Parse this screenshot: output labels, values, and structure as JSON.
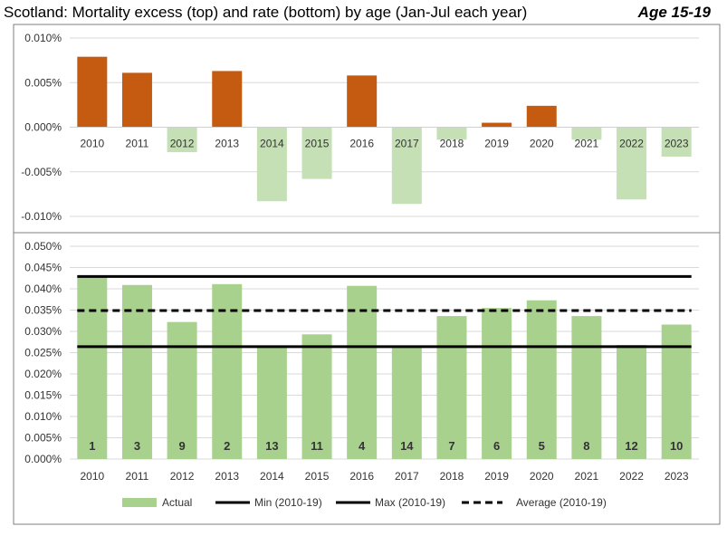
{
  "header": {
    "title": "Scotland: Mortality excess (top) and rate (bottom) by age (Jan-Jul each year)",
    "age_group": "Age 15-19"
  },
  "colors": {
    "positive_excess": "#c55a11",
    "negative_excess": "#c5e0b4",
    "actual_bar": "#a9d18e",
    "reference_line": "#000000",
    "grid": "#d9d9d9"
  },
  "chart_data": [
    {
      "type": "bar",
      "categories": [
        "2010",
        "2011",
        "2012",
        "2013",
        "2014",
        "2015",
        "2016",
        "2017",
        "2018",
        "2019",
        "2020",
        "2021",
        "2022",
        "2023"
      ],
      "values": [
        0.0079,
        0.0061,
        -0.0028,
        0.0063,
        -0.0083,
        -0.0058,
        0.0058,
        -0.0086,
        -0.0014,
        0.0005,
        0.0024,
        -0.0014,
        -0.0081,
        -0.0033
      ],
      "ylim": [
        -0.01,
        0.01
      ],
      "yticks": [
        "0.010%",
        "0.005%",
        "0.000%",
        "-0.005%",
        "-0.010%"
      ],
      "ytick_values": [
        0.01,
        0.005,
        0,
        -0.005,
        -0.01
      ],
      "grid": true
    },
    {
      "type": "bar",
      "categories": [
        "2010",
        "2011",
        "2012",
        "2013",
        "2014",
        "2015",
        "2016",
        "2017",
        "2018",
        "2019",
        "2020",
        "2021",
        "2022",
        "2023"
      ],
      "series": [
        {
          "name": "Actual",
          "values": [
            0.0429,
            0.0409,
            0.0322,
            0.0411,
            0.0265,
            0.0293,
            0.0407,
            0.0264,
            0.0336,
            0.0355,
            0.0373,
            0.0336,
            0.0268,
            0.0316
          ]
        }
      ],
      "ranks": [
        "1",
        "3",
        "9",
        "2",
        "13",
        "11",
        "4",
        "14",
        "7",
        "6",
        "5",
        "8",
        "12",
        "10"
      ],
      "lines": [
        {
          "name": "Min (2010-19)",
          "value": 0.0264,
          "style": "solid"
        },
        {
          "name": "Max (2010-19)",
          "value": 0.0429,
          "style": "solid"
        },
        {
          "name": "Average (2010-19)",
          "value": 0.0349,
          "style": "dashed"
        }
      ],
      "ylim": [
        0,
        0.05
      ],
      "yticks": [
        "0.050%",
        "0.045%",
        "0.040%",
        "0.035%",
        "0.030%",
        "0.025%",
        "0.020%",
        "0.015%",
        "0.010%",
        "0.005%",
        "0.000%"
      ],
      "ytick_values": [
        0.05,
        0.045,
        0.04,
        0.035,
        0.03,
        0.025,
        0.02,
        0.015,
        0.01,
        0.005,
        0
      ],
      "legend": [
        "Actual",
        "Min (2010-19)",
        "Max (2010-19)",
        "Average (2010-19)"
      ],
      "legend_position": "bottom",
      "grid": true
    }
  ]
}
